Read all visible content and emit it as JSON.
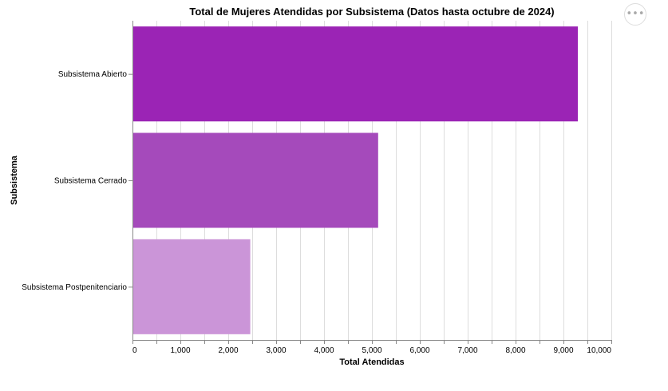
{
  "actions_button": {
    "icon": "more-horizontal-icon",
    "glyph": "•••"
  },
  "chart_data": {
    "type": "bar",
    "orientation": "horizontal",
    "title": "Total de Mujeres Atendidas por Subsistema (Datos hasta octubre de 2024)",
    "xlabel": "Total Atendidas",
    "ylabel": "Subsistema",
    "xlim": [
      0,
      10000
    ],
    "x_ticks": [
      0,
      1000,
      2000,
      3000,
      4000,
      5000,
      6000,
      7000,
      8000,
      9000,
      10000
    ],
    "x_tick_labels": [
      "0",
      "1,000",
      "2,000",
      "3,000",
      "4,000",
      "5,000",
      "6,000",
      "7,000",
      "8,000",
      "9,000",
      "10,000"
    ],
    "categories": [
      "Subsistema Abierto",
      "Subsistema Cerrado",
      "Subsistema Postpenitenciario"
    ],
    "values": [
      9300,
      5130,
      2460
    ],
    "colors": [
      "#9b24b5",
      "#a54abb",
      "#cb95d8"
    ],
    "grid": true
  }
}
